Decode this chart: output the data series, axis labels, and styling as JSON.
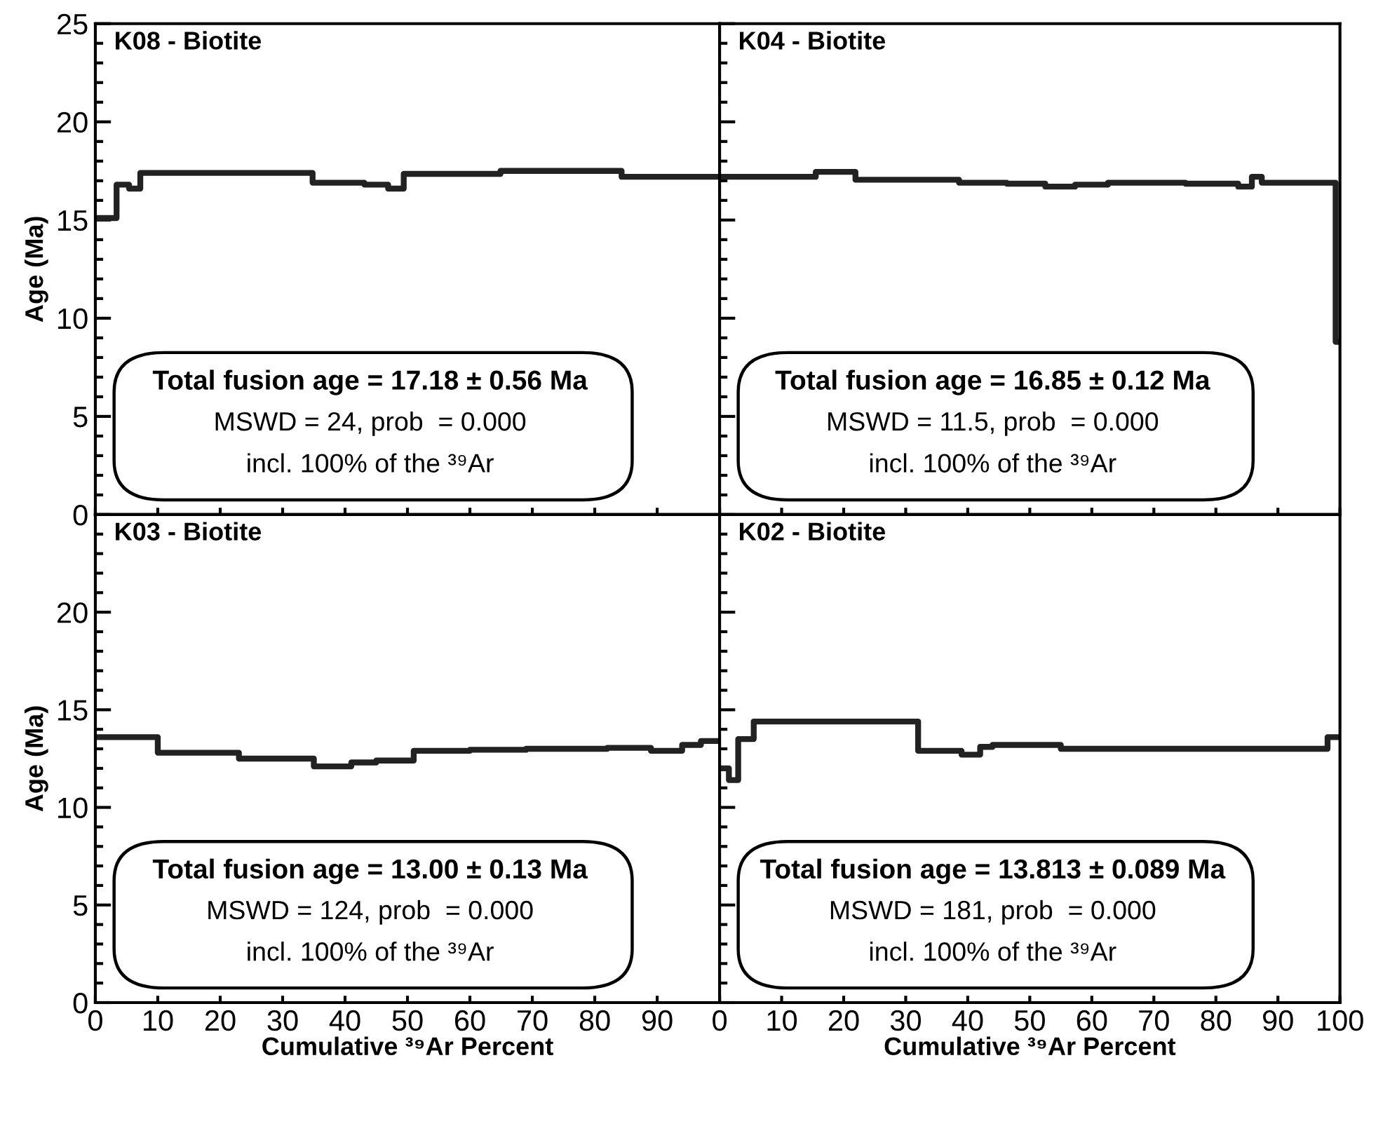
{
  "chart_data": [
    {
      "type": "step",
      "title": "K08 - Biotite",
      "ylabel": "Age (Ma)",
      "xlim": [
        0,
        100
      ],
      "ylim": [
        0,
        25
      ],
      "tick_labels": "y",
      "grid": false,
      "legend": false,
      "xticks": [
        0,
        10,
        20,
        30,
        40,
        50,
        60,
        70,
        80,
        90
      ],
      "yticks": [
        0,
        {
          "value": 1,
          "label": null
        },
        {
          "value": 2,
          "label": null
        },
        {
          "value": 3,
          "label": null
        },
        {
          "value": 4,
          "label": null
        },
        5,
        {
          "value": 6,
          "label": null
        },
        {
          "value": 7,
          "label": null
        },
        {
          "value": 8,
          "label": null
        },
        {
          "value": 9,
          "label": null
        },
        10,
        {
          "value": 11,
          "label": null
        },
        {
          "value": 12,
          "label": null
        },
        {
          "value": 13,
          "label": null
        },
        {
          "value": 14,
          "label": null
        },
        15,
        {
          "value": 16,
          "label": null
        },
        {
          "value": 17,
          "label": null
        },
        {
          "value": 18,
          "label": null
        },
        {
          "value": 19,
          "label": null
        },
        20,
        {
          "value": 21,
          "label": null
        },
        {
          "value": 22,
          "label": null
        },
        {
          "value": 23,
          "label": null
        },
        {
          "value": 24,
          "label": null
        },
        25
      ],
      "series": [
        {
          "color": "#222222",
          "x": [
            0,
            3.4,
            5.4,
            7.2,
            34.8,
            43.1,
            46.9,
            49.4,
            64.9,
            84.3,
            100
          ],
          "values": [
            15.1,
            16.8,
            16.6,
            17.4,
            16.9,
            16.8,
            16.6,
            17.35,
            17.5,
            17.2,
            17.2
          ]
        }
      ],
      "annotations": [
        "Total fusion age = 17.18 ± 0.56 Ma",
        "MSWD = 24, prob  = 0.000",
        "incl. 100% of the ³⁹Ar"
      ]
    },
    {
      "type": "step",
      "title": "K04 - Biotite",
      "xlim": [
        0,
        100
      ],
      "ylim": [
        0,
        25
      ],
      "tick_labels": false,
      "grid": false,
      "legend": false,
      "xticks": [
        0,
        10,
        20,
        30,
        40,
        50,
        60,
        70,
        80,
        90,
        100
      ],
      "yticks": [
        0,
        {
          "value": 1,
          "label": null
        },
        {
          "value": 2,
          "label": null
        },
        {
          "value": 3,
          "label": null
        },
        {
          "value": 4,
          "label": null
        },
        5,
        {
          "value": 6,
          "label": null
        },
        {
          "value": 7,
          "label": null
        },
        {
          "value": 8,
          "label": null
        },
        {
          "value": 9,
          "label": null
        },
        10,
        {
          "value": 11,
          "label": null
        },
        {
          "value": 12,
          "label": null
        },
        {
          "value": 13,
          "label": null
        },
        {
          "value": 14,
          "label": null
        },
        15,
        {
          "value": 16,
          "label": null
        },
        {
          "value": 17,
          "label": null
        },
        {
          "value": 18,
          "label": null
        },
        {
          "value": 19,
          "label": null
        },
        20,
        {
          "value": 21,
          "label": null
        },
        {
          "value": 22,
          "label": null
        },
        {
          "value": 23,
          "label": null
        },
        {
          "value": 24,
          "label": null
        },
        25
      ],
      "series": [
        {
          "color": "#222222",
          "x": [
            0,
            15.5,
            21.9,
            38.6,
            46.3,
            52.5,
            57.3,
            62.6,
            75.1,
            83.6,
            85.8,
            87.4,
            99.3,
            100
          ],
          "values": [
            17.2,
            17.45,
            17.05,
            16.9,
            16.85,
            16.7,
            16.8,
            16.9,
            16.85,
            16.7,
            17.2,
            16.9,
            8.8,
            8.8
          ]
        }
      ],
      "annotations": [
        "Total fusion age = 16.85 ± 0.12 Ma",
        "MSWD = 11.5, prob  = 0.000",
        "incl. 100% of the ³⁹Ar"
      ]
    },
    {
      "type": "step",
      "title": "K03 - Biotite",
      "xlabel": "Cumulative ³⁹Ar Percent",
      "ylabel": "Age (Ma)",
      "xlim": [
        0,
        100
      ],
      "ylim": [
        0,
        25
      ],
      "grid": false,
      "legend": false,
      "xticks": [
        0,
        10,
        20,
        30,
        40,
        50,
        60,
        70,
        80,
        90
      ],
      "yticks": [
        0,
        {
          "value": 1,
          "label": null
        },
        {
          "value": 2,
          "label": null
        },
        {
          "value": 3,
          "label": null
        },
        {
          "value": 4,
          "label": null
        },
        5,
        {
          "value": 6,
          "label": null
        },
        {
          "value": 7,
          "label": null
        },
        {
          "value": 8,
          "label": null
        },
        {
          "value": 9,
          "label": null
        },
        10,
        {
          "value": 11,
          "label": null
        },
        {
          "value": 12,
          "label": null
        },
        {
          "value": 13,
          "label": null
        },
        {
          "value": 14,
          "label": null
        },
        15,
        {
          "value": 16,
          "label": null
        },
        {
          "value": 17,
          "label": null
        },
        {
          "value": 18,
          "label": null
        },
        {
          "value": 19,
          "label": null
        },
        20,
        {
          "value": 21,
          "label": null
        },
        {
          "value": 22,
          "label": null
        },
        {
          "value": 23,
          "label": null
        },
        {
          "value": 24,
          "label": null
        }
      ],
      "series": [
        {
          "color": "#222222",
          "x": [
            0,
            10,
            23,
            35,
            41,
            45,
            51,
            60,
            69,
            82,
            89,
            94,
            97,
            100
          ],
          "values": [
            13.6,
            12.8,
            12.5,
            12.1,
            12.3,
            12.4,
            12.9,
            12.95,
            13.0,
            13.05,
            12.9,
            13.2,
            13.4,
            13.4
          ]
        }
      ],
      "annotations": [
        "Total fusion age = 13.00 ± 0.13 Ma",
        "MSWD = 124, prob  = 0.000",
        "incl. 100% of the ³⁹Ar"
      ]
    },
    {
      "type": "step",
      "title": "K02 - Biotite",
      "xlabel": "Cumulative ³⁹Ar Percent",
      "xlim": [
        0,
        100
      ],
      "ylim": [
        0,
        25
      ],
      "tick_labels": "x",
      "grid": false,
      "legend": false,
      "xticks": [
        0,
        10,
        20,
        30,
        40,
        50,
        60,
        70,
        80,
        90,
        100
      ],
      "yticks": [
        0,
        {
          "value": 1,
          "label": null
        },
        {
          "value": 2,
          "label": null
        },
        {
          "value": 3,
          "label": null
        },
        {
          "value": 4,
          "label": null
        },
        5,
        {
          "value": 6,
          "label": null
        },
        {
          "value": 7,
          "label": null
        },
        {
          "value": 8,
          "label": null
        },
        {
          "value": 9,
          "label": null
        },
        10,
        {
          "value": 11,
          "label": null
        },
        {
          "value": 12,
          "label": null
        },
        {
          "value": 13,
          "label": null
        },
        {
          "value": 14,
          "label": null
        },
        15,
        {
          "value": 16,
          "label": null
        },
        {
          "value": 17,
          "label": null
        },
        {
          "value": 18,
          "label": null
        },
        {
          "value": 19,
          "label": null
        },
        20,
        {
          "value": 21,
          "label": null
        },
        {
          "value": 22,
          "label": null
        },
        {
          "value": 23,
          "label": null
        },
        {
          "value": 24,
          "label": null
        }
      ],
      "series": [
        {
          "color": "#222222",
          "x": [
            0,
            1.5,
            3,
            5.5,
            32,
            39,
            42,
            44,
            55,
            98,
            100
          ],
          "values": [
            12.0,
            11.4,
            13.5,
            14.4,
            12.9,
            12.7,
            13.1,
            13.2,
            13.0,
            13.6,
            13.6
          ]
        }
      ],
      "annotations": [
        "Total fusion age = 13.813 ± 0.089 Ma",
        "MSWD = 181, prob  = 0.000",
        "incl. 100% of the ³⁹Ar"
      ]
    }
  ]
}
